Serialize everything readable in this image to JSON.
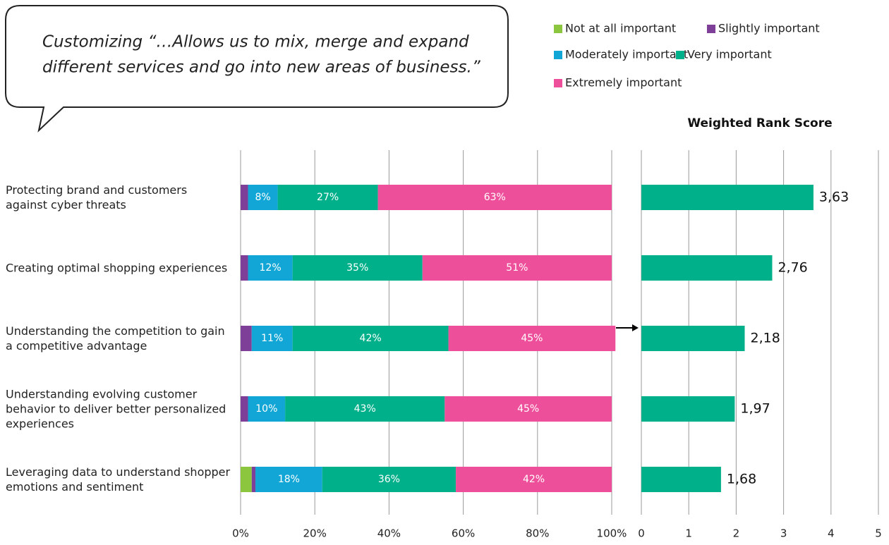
{
  "quote": [
    "Customizing “…Allows us to mix, merge and expand",
    "different services and go into new areas of business.”"
  ],
  "chart_data": [
    {
      "type": "bar",
      "orientation": "horizontal",
      "stacked": true,
      "categories": [
        "Protecting brand and customers against cyber threats",
        "Creating optimal shopping experiences",
        "Understanding the competition to gain a competitive advantage",
        "Understanding evolving customer behavior to deliver better personalized experiences",
        "Leveraging data to understand shopper emotions and sentiment"
      ],
      "series": [
        {
          "name": "Not at all important",
          "color": "#8cc63f",
          "values": [
            0,
            0,
            0,
            0,
            3
          ]
        },
        {
          "name": "Slightly important",
          "color": "#7d3f98",
          "values": [
            2,
            2,
            3,
            2,
            1
          ]
        },
        {
          "name": "Moderately important",
          "color": "#12a6d6",
          "values": [
            8,
            12,
            11,
            10,
            18
          ],
          "value_labels": [
            "8%",
            "12%",
            "11%",
            "10%",
            "18%"
          ]
        },
        {
          "name": "Very important",
          "color": "#00b08a",
          "values": [
            27,
            35,
            42,
            43,
            36
          ],
          "value_labels": [
            "27%",
            "35%",
            "42%",
            "43%",
            "36%"
          ]
        },
        {
          "name": "Extremely important",
          "color": "#ee4f9b",
          "values": [
            63,
            51,
            45,
            45,
            42
          ],
          "value_labels": [
            "63%",
            "51%",
            "45%",
            "45%",
            "42%"
          ]
        }
      ],
      "xlim": [
        0,
        100
      ],
      "xticks": [
        {
          "value": 0,
          "label": "0%"
        },
        {
          "value": 20,
          "label": "20%"
        },
        {
          "value": 40,
          "label": "40%"
        },
        {
          "value": 60,
          "label": "60%"
        },
        {
          "value": 80,
          "label": "80%"
        },
        {
          "value": 100,
          "label": "100%"
        }
      ],
      "grid": true
    },
    {
      "type": "bar",
      "orientation": "horizontal",
      "title": "Weighted Rank Score",
      "values": [
        3.63,
        2.76,
        2.18,
        1.97,
        1.68
      ],
      "value_labels": [
        "3,63",
        "2,76",
        "2,18",
        "1,97",
        "1,68"
      ],
      "color": "#00b08a",
      "xlim": [
        0,
        5
      ],
      "xticks": [
        0,
        1,
        2,
        3,
        4,
        5
      ],
      "grid": true
    }
  ]
}
